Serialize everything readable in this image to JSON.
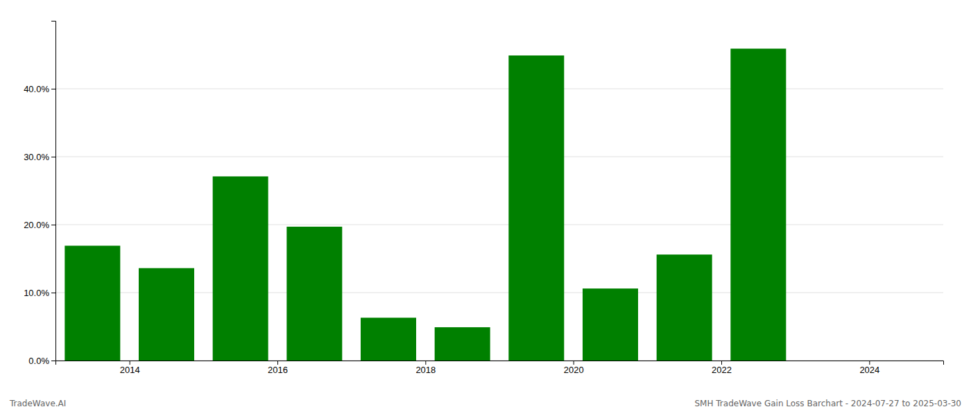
{
  "chart_data": {
    "type": "bar",
    "title": "SMH TradeWave Gain Loss Barchart - 2024-07-27 to 2025-03-30",
    "annotations": [
      "TradeWave.AI"
    ],
    "x": [
      2013.5,
      2014.5,
      2015.5,
      2016.5,
      2017.5,
      2018.5,
      2019.5,
      2020.5,
      2021.5,
      2022.5,
      2023.5
    ],
    "values": [
      0.169,
      0.136,
      0.271,
      0.197,
      0.063,
      0.049,
      0.449,
      0.106,
      0.156,
      0.459,
      0.0
    ],
    "color": "#008000",
    "xlim": [
      2013.0,
      2025.0
    ],
    "xticks": [
      2014,
      2016,
      2018,
      2020,
      2022,
      2024
    ],
    "ylim": [
      0,
      0.5
    ],
    "yticks": [
      {
        "value": 0.0,
        "label": "0.0%"
      },
      {
        "value": 0.1,
        "label": "10.0%"
      },
      {
        "value": 0.2,
        "label": "20.0%"
      },
      {
        "value": 0.3,
        "label": "30.0%"
      },
      {
        "value": 0.4,
        "label": "40.0%"
      }
    ],
    "grid": true
  }
}
